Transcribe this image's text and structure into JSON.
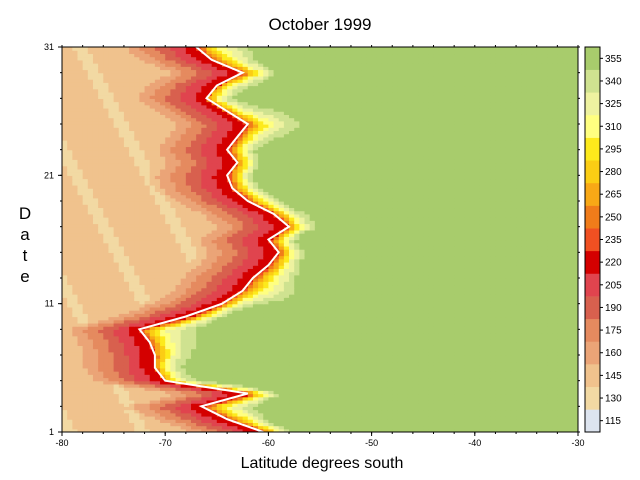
{
  "chart_data": {
    "type": "heatmap",
    "title": "October 1999",
    "xlabel": "Latitude degrees south",
    "ylabel": "Date",
    "xlim": [
      -80,
      -30
    ],
    "ylim": [
      1,
      31
    ],
    "x_ticks": [
      "-80",
      "-70",
      "-60",
      "-50",
      "-40",
      "-30"
    ],
    "y_ticks": [
      "1",
      "11",
      "21",
      "31"
    ],
    "colorbar": {
      "levels": [
        "115",
        "130",
        "145",
        "160",
        "175",
        "190",
        "205",
        "220",
        "235",
        "250",
        "265",
        "280",
        "295",
        "310",
        "325",
        "340",
        "355"
      ],
      "colors": [
        "#dde4ef",
        "#f2d9a3",
        "#f0c28d",
        "#eba477",
        "#e58a5f",
        "#d8604e",
        "#e0444e",
        "#d40000",
        "#f05022",
        "#f07c1a",
        "#f8a816",
        "#fbcd14",
        "#fdea1c",
        "#ffff80",
        "#eef2a0",
        "#cfe290",
        "#a8cc6c"
      ]
    },
    "boundary_line": {
      "label": "220",
      "points": [
        {
          "date": 1,
          "lat": -60.5
        },
        {
          "date": 2,
          "lat": -64
        },
        {
          "date": 3,
          "lat": -66.5
        },
        {
          "date": 4,
          "lat": -62
        },
        {
          "date": 5,
          "lat": -70
        },
        {
          "date": 6,
          "lat": -71
        },
        {
          "date": 7,
          "lat": -71
        },
        {
          "date": 8,
          "lat": -71.5
        },
        {
          "date": 9,
          "lat": -72.5
        },
        {
          "date": 10,
          "lat": -68
        },
        {
          "date": 11,
          "lat": -64.5
        },
        {
          "date": 12,
          "lat": -62.5
        },
        {
          "date": 13,
          "lat": -61.5
        },
        {
          "date": 14,
          "lat": -60
        },
        {
          "date": 15,
          "lat": -59
        },
        {
          "date": 16,
          "lat": -60
        },
        {
          "date": 17,
          "lat": -58
        },
        {
          "date": 18,
          "lat": -59.5
        },
        {
          "date": 19,
          "lat": -62
        },
        {
          "date": 20,
          "lat": -63.5
        },
        {
          "date": 21,
          "lat": -64
        },
        {
          "date": 22,
          "lat": -63
        },
        {
          "date": 23,
          "lat": -64
        },
        {
          "date": 24,
          "lat": -63
        },
        {
          "date": 25,
          "lat": -62
        },
        {
          "date": 26,
          "lat": -64
        },
        {
          "date": 27,
          "lat": -66
        },
        {
          "date": 28,
          "lat": -65
        },
        {
          "date": 29,
          "lat": -62.5
        },
        {
          "date": 30,
          "lat": -65.5
        },
        {
          "date": 31,
          "lat": -67
        }
      ]
    },
    "grid": false,
    "legend": "colorbar-right"
  }
}
